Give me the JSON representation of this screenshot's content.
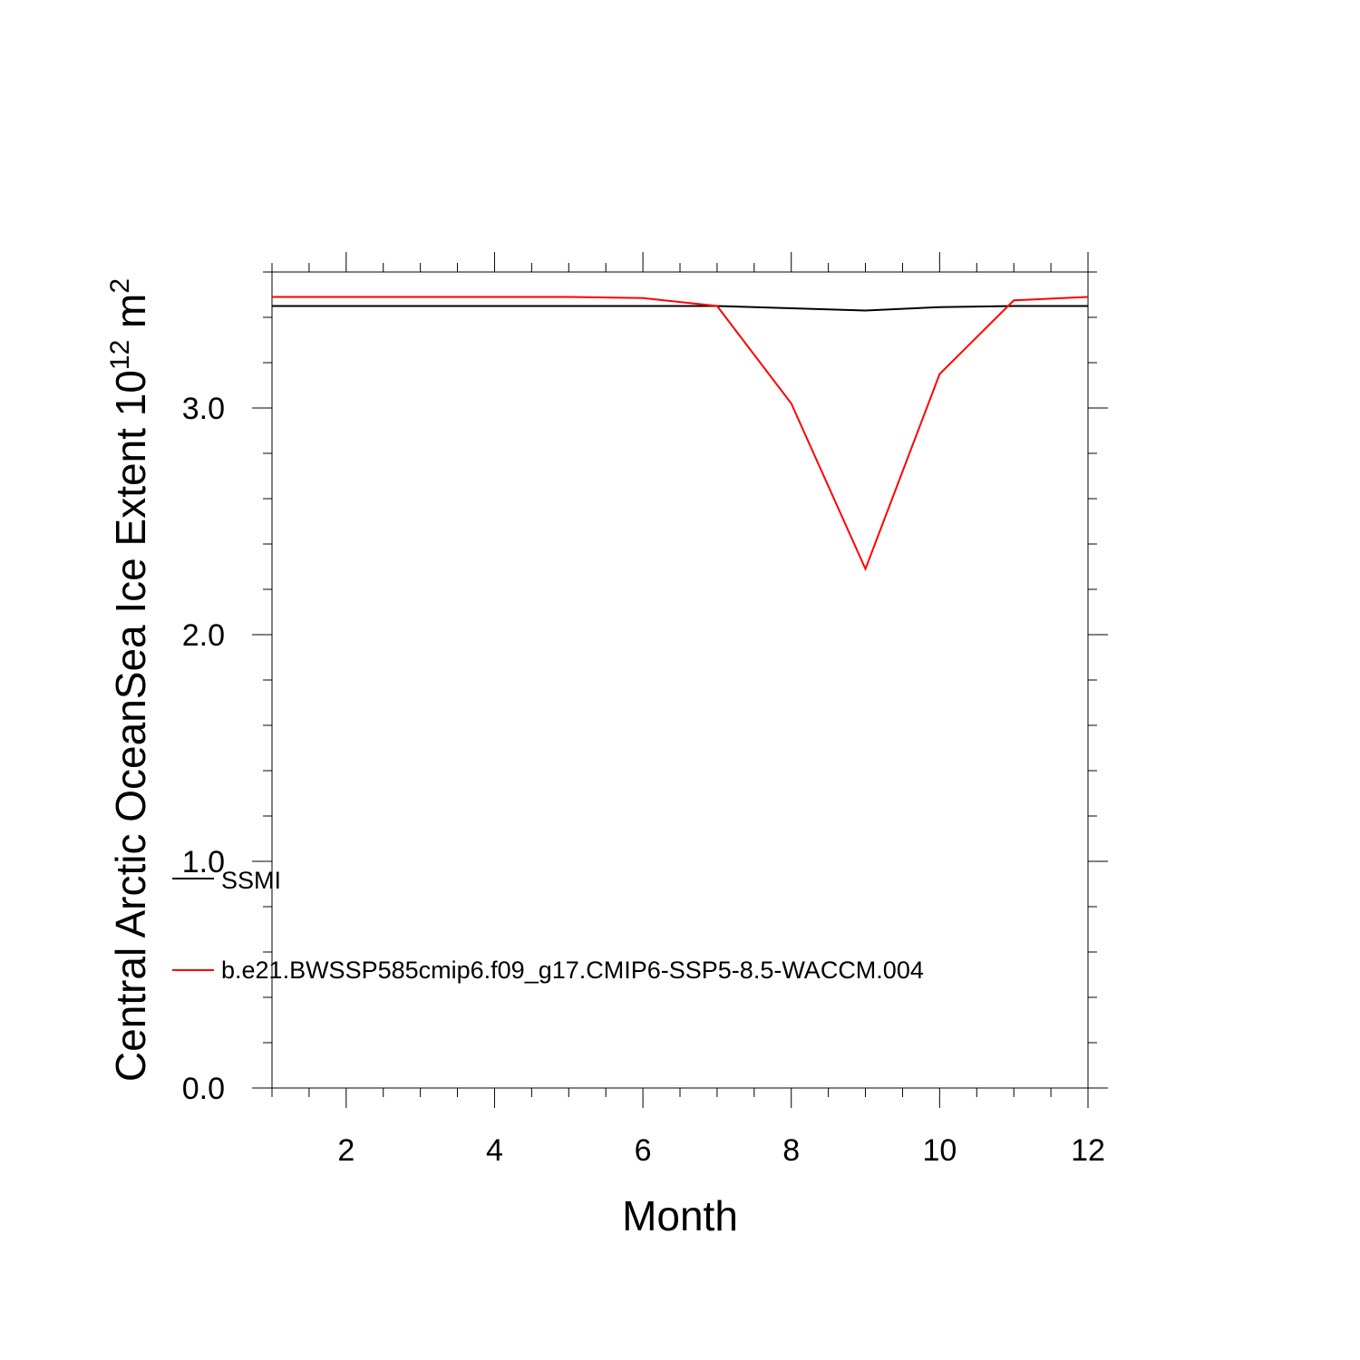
{
  "chart_data": {
    "type": "line",
    "xlabel": "Month",
    "ylabel": "Central Arctic OceanSea Ice Extent 10",
    "ylabel_exponent": "12",
    "ylabel_unit": " m",
    "ylabel_unit_exponent": "2",
    "xlim": [
      1,
      12
    ],
    "ylim": [
      0,
      3.6
    ],
    "x_ticks": [
      2,
      4,
      6,
      8,
      10,
      12
    ],
    "x_tick_labels": [
      "2",
      "4",
      "6",
      "8",
      "10",
      "12"
    ],
    "y_ticks": [
      0,
      1,
      2,
      3
    ],
    "y_tick_labels": [
      "0.0",
      "1.0",
      "2.0",
      "3.0"
    ],
    "x": [
      1,
      2,
      3,
      4,
      5,
      6,
      7,
      8,
      9,
      10,
      11,
      12
    ],
    "series": [
      {
        "name": "SSMI",
        "color": "#000000",
        "values": [
          3.45,
          3.45,
          3.45,
          3.45,
          3.45,
          3.45,
          3.45,
          3.44,
          3.43,
          3.445,
          3.45,
          3.45
        ]
      },
      {
        "name": "b.e21.BWSSP585cmip6.f09_g17.CMIP6-SSP5-8.5-WACCM.004",
        "color": "#ff0000",
        "values": [
          3.49,
          3.49,
          3.49,
          3.49,
          3.49,
          3.485,
          3.45,
          3.02,
          2.29,
          3.15,
          3.475,
          3.49
        ]
      }
    ],
    "grid": false,
    "legend_position": "bottom-left"
  }
}
